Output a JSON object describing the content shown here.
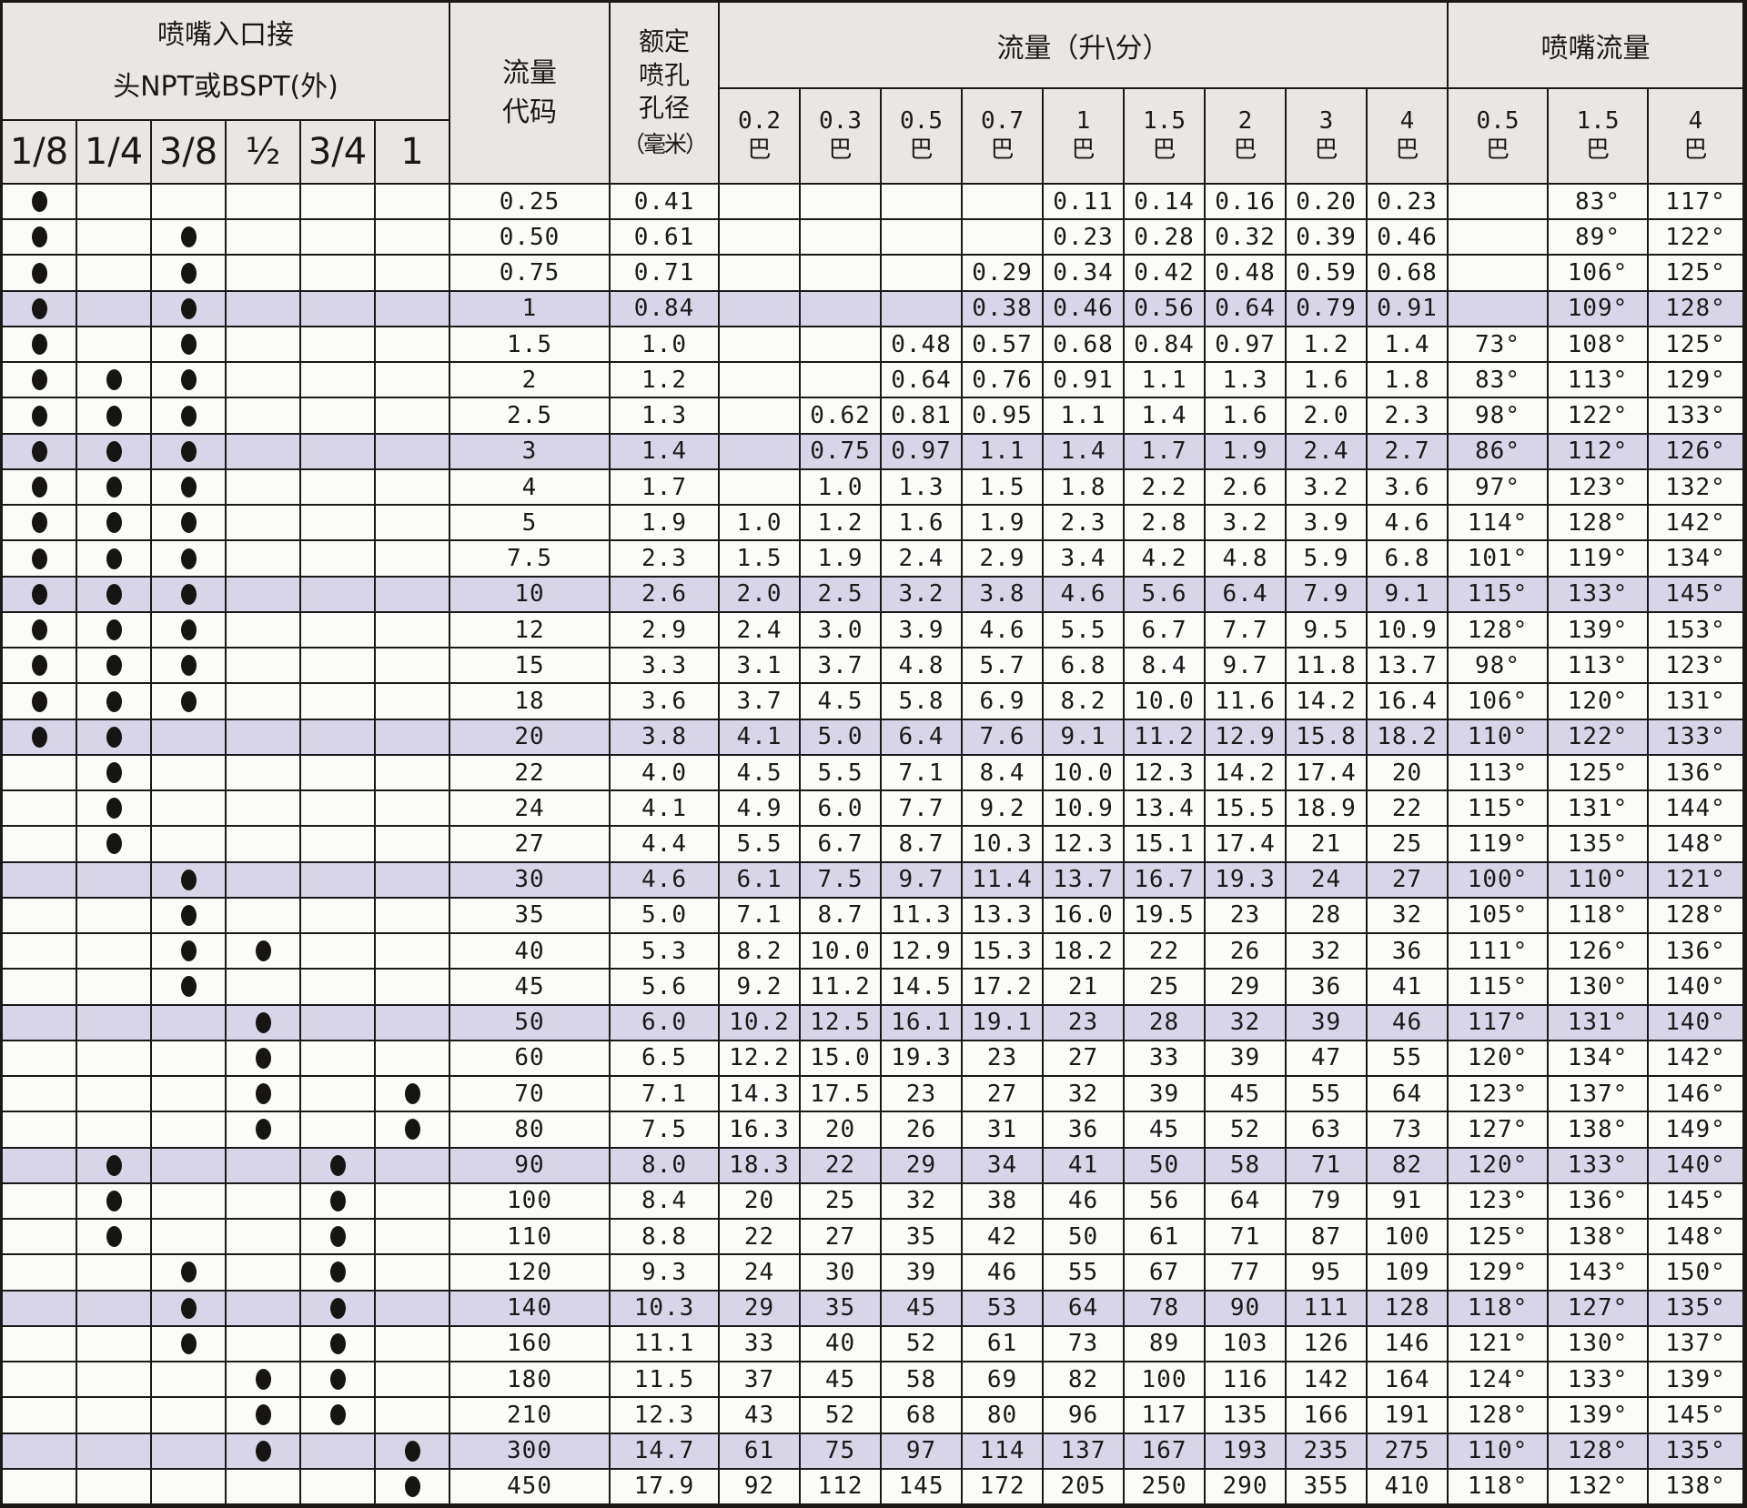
{
  "header": {
    "inlet_title_1": "喷嘴入口接",
    "inlet_title_2": "头NPT或BSPT(外)",
    "inlet_sizes": [
      "1/8",
      "1/4",
      "3/8",
      "½",
      "3/4",
      "1"
    ],
    "code_label_1": "流量",
    "code_label_2": "代码",
    "orifice_lines": [
      "额定",
      "喷孔",
      "孔径"
    ],
    "orifice_unit": "（毫米）",
    "flow_title": "流量（升\\分）",
    "flow_pressures": [
      "0.2",
      "0.3",
      "0.5",
      "0.7",
      "1",
      "1.5",
      "2",
      "3",
      "4"
    ],
    "angle_title": "喷嘴流量",
    "angle_pressures": [
      "0.5",
      "1.5",
      "4"
    ],
    "bar": "巴"
  },
  "rows": [
    {
      "code": "0.25",
      "orifice": "0.41",
      "conn": [
        1,
        0,
        0,
        0,
        0,
        0
      ],
      "flows": [
        "",
        "",
        "",
        "",
        "0.11",
        "0.14",
        "0.16",
        "0.20",
        "0.23"
      ],
      "angles": [
        "",
        "83°",
        "117°"
      ],
      "hl": false
    },
    {
      "code": "0.50",
      "orifice": "0.61",
      "conn": [
        1,
        0,
        1,
        0,
        0,
        0
      ],
      "flows": [
        "",
        "",
        "",
        "",
        "0.23",
        "0.28",
        "0.32",
        "0.39",
        "0.46"
      ],
      "angles": [
        "",
        "89°",
        "122°"
      ],
      "hl": false
    },
    {
      "code": "0.75",
      "orifice": "0.71",
      "conn": [
        1,
        0,
        1,
        0,
        0,
        0
      ],
      "flows": [
        "",
        "",
        "",
        "0.29",
        "0.34",
        "0.42",
        "0.48",
        "0.59",
        "0.68"
      ],
      "angles": [
        "",
        "106°",
        "125°"
      ],
      "hl": false
    },
    {
      "code": "1",
      "orifice": "0.84",
      "conn": [
        1,
        0,
        1,
        0,
        0,
        0
      ],
      "flows": [
        "",
        "",
        "",
        "0.38",
        "0.46",
        "0.56",
        "0.64",
        "0.79",
        "0.91"
      ],
      "angles": [
        "",
        "109°",
        "128°"
      ],
      "hl": true
    },
    {
      "code": "1.5",
      "orifice": "1.0",
      "conn": [
        1,
        0,
        1,
        0,
        0,
        0
      ],
      "flows": [
        "",
        "",
        "0.48",
        "0.57",
        "0.68",
        "0.84",
        "0.97",
        "1.2",
        "1.4"
      ],
      "angles": [
        "73°",
        "108°",
        "125°"
      ],
      "hl": false
    },
    {
      "code": "2",
      "orifice": "1.2",
      "conn": [
        1,
        1,
        1,
        0,
        0,
        0
      ],
      "flows": [
        "",
        "",
        "0.64",
        "0.76",
        "0.91",
        "1.1",
        "1.3",
        "1.6",
        "1.8"
      ],
      "angles": [
        "83°",
        "113°",
        "129°"
      ],
      "hl": false
    },
    {
      "code": "2.5",
      "orifice": "1.3",
      "conn": [
        1,
        1,
        1,
        0,
        0,
        0
      ],
      "flows": [
        "",
        "0.62",
        "0.81",
        "0.95",
        "1.1",
        "1.4",
        "1.6",
        "2.0",
        "2.3"
      ],
      "angles": [
        "98°",
        "122°",
        "133°"
      ],
      "hl": false
    },
    {
      "code": "3",
      "orifice": "1.4",
      "conn": [
        1,
        1,
        1,
        0,
        0,
        0
      ],
      "flows": [
        "",
        "0.75",
        "0.97",
        "1.1",
        "1.4",
        "1.7",
        "1.9",
        "2.4",
        "2.7"
      ],
      "angles": [
        "86°",
        "112°",
        "126°"
      ],
      "hl": true
    },
    {
      "code": "4",
      "orifice": "1.7",
      "conn": [
        1,
        1,
        1,
        0,
        0,
        0
      ],
      "flows": [
        "",
        "1.0",
        "1.3",
        "1.5",
        "1.8",
        "2.2",
        "2.6",
        "3.2",
        "3.6"
      ],
      "angles": [
        "97°",
        "123°",
        "132°"
      ],
      "hl": false
    },
    {
      "code": "5",
      "orifice": "1.9",
      "conn": [
        1,
        1,
        1,
        0,
        0,
        0
      ],
      "flows": [
        "1.0",
        "1.2",
        "1.6",
        "1.9",
        "2.3",
        "2.8",
        "3.2",
        "3.9",
        "4.6"
      ],
      "angles": [
        "114°",
        "128°",
        "142°"
      ],
      "hl": false
    },
    {
      "code": "7.5",
      "orifice": "2.3",
      "conn": [
        1,
        1,
        1,
        0,
        0,
        0
      ],
      "flows": [
        "1.5",
        "1.9",
        "2.4",
        "2.9",
        "3.4",
        "4.2",
        "4.8",
        "5.9",
        "6.8"
      ],
      "angles": [
        "101°",
        "119°",
        "134°"
      ],
      "hl": false
    },
    {
      "code": "10",
      "orifice": "2.6",
      "conn": [
        1,
        1,
        1,
        0,
        0,
        0
      ],
      "flows": [
        "2.0",
        "2.5",
        "3.2",
        "3.8",
        "4.6",
        "5.6",
        "6.4",
        "7.9",
        "9.1"
      ],
      "angles": [
        "115°",
        "133°",
        "145°"
      ],
      "hl": true
    },
    {
      "code": "12",
      "orifice": "2.9",
      "conn": [
        1,
        1,
        1,
        0,
        0,
        0
      ],
      "flows": [
        "2.4",
        "3.0",
        "3.9",
        "4.6",
        "5.5",
        "6.7",
        "7.7",
        "9.5",
        "10.9"
      ],
      "angles": [
        "128°",
        "139°",
        "153°"
      ],
      "hl": false
    },
    {
      "code": "15",
      "orifice": "3.3",
      "conn": [
        1,
        1,
        1,
        0,
        0,
        0
      ],
      "flows": [
        "3.1",
        "3.7",
        "4.8",
        "5.7",
        "6.8",
        "8.4",
        "9.7",
        "11.8",
        "13.7"
      ],
      "angles": [
        "98°",
        "113°",
        "123°"
      ],
      "hl": false
    },
    {
      "code": "18",
      "orifice": "3.6",
      "conn": [
        1,
        1,
        1,
        0,
        0,
        0
      ],
      "flows": [
        "3.7",
        "4.5",
        "5.8",
        "6.9",
        "8.2",
        "10.0",
        "11.6",
        "14.2",
        "16.4"
      ],
      "angles": [
        "106°",
        "120°",
        "131°"
      ],
      "hl": false
    },
    {
      "code": "20",
      "orifice": "3.8",
      "conn": [
        1,
        1,
        0,
        0,
        0,
        0
      ],
      "flows": [
        "4.1",
        "5.0",
        "6.4",
        "7.6",
        "9.1",
        "11.2",
        "12.9",
        "15.8",
        "18.2"
      ],
      "angles": [
        "110°",
        "122°",
        "133°"
      ],
      "hl": true
    },
    {
      "code": "22",
      "orifice": "4.0",
      "conn": [
        0,
        1,
        0,
        0,
        0,
        0
      ],
      "flows": [
        "4.5",
        "5.5",
        "7.1",
        "8.4",
        "10.0",
        "12.3",
        "14.2",
        "17.4",
        "20"
      ],
      "angles": [
        "113°",
        "125°",
        "136°"
      ],
      "hl": false
    },
    {
      "code": "24",
      "orifice": "4.1",
      "conn": [
        0,
        1,
        0,
        0,
        0,
        0
      ],
      "flows": [
        "4.9",
        "6.0",
        "7.7",
        "9.2",
        "10.9",
        "13.4",
        "15.5",
        "18.9",
        "22"
      ],
      "angles": [
        "115°",
        "131°",
        "144°"
      ],
      "hl": false
    },
    {
      "code": "27",
      "orifice": "4.4",
      "conn": [
        0,
        1,
        0,
        0,
        0,
        0
      ],
      "flows": [
        "5.5",
        "6.7",
        "8.7",
        "10.3",
        "12.3",
        "15.1",
        "17.4",
        "21",
        "25"
      ],
      "angles": [
        "119°",
        "135°",
        "148°"
      ],
      "hl": false
    },
    {
      "code": "30",
      "orifice": "4.6",
      "conn": [
        0,
        0,
        1,
        0,
        0,
        0
      ],
      "flows": [
        "6.1",
        "7.5",
        "9.7",
        "11.4",
        "13.7",
        "16.7",
        "19.3",
        "24",
        "27"
      ],
      "angles": [
        "100°",
        "110°",
        "121°"
      ],
      "hl": true
    },
    {
      "code": "35",
      "orifice": "5.0",
      "conn": [
        0,
        0,
        1,
        0,
        0,
        0
      ],
      "flows": [
        "7.1",
        "8.7",
        "11.3",
        "13.3",
        "16.0",
        "19.5",
        "23",
        "28",
        "32"
      ],
      "angles": [
        "105°",
        "118°",
        "128°"
      ],
      "hl": false
    },
    {
      "code": "40",
      "orifice": "5.3",
      "conn": [
        0,
        0,
        1,
        1,
        0,
        0
      ],
      "flows": [
        "8.2",
        "10.0",
        "12.9",
        "15.3",
        "18.2",
        "22",
        "26",
        "32",
        "36"
      ],
      "angles": [
        "111°",
        "126°",
        "136°"
      ],
      "hl": false
    },
    {
      "code": "45",
      "orifice": "5.6",
      "conn": [
        0,
        0,
        1,
        0,
        0,
        0
      ],
      "flows": [
        "9.2",
        "11.2",
        "14.5",
        "17.2",
        "21",
        "25",
        "29",
        "36",
        "41"
      ],
      "angles": [
        "115°",
        "130°",
        "140°"
      ],
      "hl": false
    },
    {
      "code": "50",
      "orifice": "6.0",
      "conn": [
        0,
        0,
        0,
        1,
        0,
        0
      ],
      "flows": [
        "10.2",
        "12.5",
        "16.1",
        "19.1",
        "23",
        "28",
        "32",
        "39",
        "46"
      ],
      "angles": [
        "117°",
        "131°",
        "140°"
      ],
      "hl": true
    },
    {
      "code": "60",
      "orifice": "6.5",
      "conn": [
        0,
        0,
        0,
        1,
        0,
        0
      ],
      "flows": [
        "12.2",
        "15.0",
        "19.3",
        "23",
        "27",
        "33",
        "39",
        "47",
        "55"
      ],
      "angles": [
        "120°",
        "134°",
        "142°"
      ],
      "hl": false
    },
    {
      "code": "70",
      "orifice": "7.1",
      "conn": [
        0,
        0,
        0,
        1,
        0,
        1
      ],
      "flows": [
        "14.3",
        "17.5",
        "23",
        "27",
        "32",
        "39",
        "45",
        "55",
        "64"
      ],
      "angles": [
        "123°",
        "137°",
        "146°"
      ],
      "hl": false
    },
    {
      "code": "80",
      "orifice": "7.5",
      "conn": [
        0,
        0,
        0,
        1,
        0,
        1
      ],
      "flows": [
        "16.3",
        "20",
        "26",
        "31",
        "36",
        "45",
        "52",
        "63",
        "73"
      ],
      "angles": [
        "127°",
        "138°",
        "149°"
      ],
      "hl": false
    },
    {
      "code": "90",
      "orifice": "8.0",
      "conn": [
        0,
        1,
        0,
        0,
        1,
        0
      ],
      "flows": [
        "18.3",
        "22",
        "29",
        "34",
        "41",
        "50",
        "58",
        "71",
        "82"
      ],
      "angles": [
        "120°",
        "133°",
        "140°"
      ],
      "hl": true
    },
    {
      "code": "100",
      "orifice": "8.4",
      "conn": [
        0,
        1,
        0,
        0,
        1,
        0
      ],
      "flows": [
        "20",
        "25",
        "32",
        "38",
        "46",
        "56",
        "64",
        "79",
        "91"
      ],
      "angles": [
        "123°",
        "136°",
        "145°"
      ],
      "hl": false
    },
    {
      "code": "110",
      "orifice": "8.8",
      "conn": [
        0,
        1,
        0,
        0,
        1,
        0
      ],
      "flows": [
        "22",
        "27",
        "35",
        "42",
        "50",
        "61",
        "71",
        "87",
        "100"
      ],
      "angles": [
        "125°",
        "138°",
        "148°"
      ],
      "hl": false
    },
    {
      "code": "120",
      "orifice": "9.3",
      "conn": [
        0,
        0,
        1,
        0,
        1,
        0
      ],
      "flows": [
        "24",
        "30",
        "39",
        "46",
        "55",
        "67",
        "77",
        "95",
        "109"
      ],
      "angles": [
        "129°",
        "143°",
        "150°"
      ],
      "hl": false
    },
    {
      "code": "140",
      "orifice": "10.3",
      "conn": [
        0,
        0,
        1,
        0,
        1,
        0
      ],
      "flows": [
        "29",
        "35",
        "45",
        "53",
        "64",
        "78",
        "90",
        "111",
        "128"
      ],
      "angles": [
        "118°",
        "127°",
        "135°"
      ],
      "hl": true
    },
    {
      "code": "160",
      "orifice": "11.1",
      "conn": [
        0,
        0,
        1,
        0,
        1,
        0
      ],
      "flows": [
        "33",
        "40",
        "52",
        "61",
        "73",
        "89",
        "103",
        "126",
        "146"
      ],
      "angles": [
        "121°",
        "130°",
        "137°"
      ],
      "hl": false
    },
    {
      "code": "180",
      "orifice": "11.5",
      "conn": [
        0,
        0,
        0,
        1,
        1,
        0
      ],
      "flows": [
        "37",
        "45",
        "58",
        "69",
        "82",
        "100",
        "116",
        "142",
        "164"
      ],
      "angles": [
        "124°",
        "133°",
        "139°"
      ],
      "hl": false
    },
    {
      "code": "210",
      "orifice": "12.3",
      "conn": [
        0,
        0,
        0,
        1,
        1,
        0
      ],
      "flows": [
        "43",
        "52",
        "68",
        "80",
        "96",
        "117",
        "135",
        "166",
        "191"
      ],
      "angles": [
        "128°",
        "139°",
        "145°"
      ],
      "hl": false
    },
    {
      "code": "300",
      "orifice": "14.7",
      "conn": [
        0,
        0,
        0,
        1,
        0,
        1
      ],
      "flows": [
        "61",
        "75",
        "97",
        "114",
        "137",
        "167",
        "193",
        "235",
        "275"
      ],
      "angles": [
        "110°",
        "128°",
        "135°"
      ],
      "hl": true
    },
    {
      "code": "450",
      "orifice": "17.9",
      "conn": [
        0,
        0,
        0,
        0,
        0,
        1
      ],
      "flows": [
        "92",
        "112",
        "145",
        "172",
        "205",
        "250",
        "290",
        "355",
        "410"
      ],
      "angles": [
        "118°",
        "132°",
        "138°"
      ],
      "hl": false
    }
  ]
}
